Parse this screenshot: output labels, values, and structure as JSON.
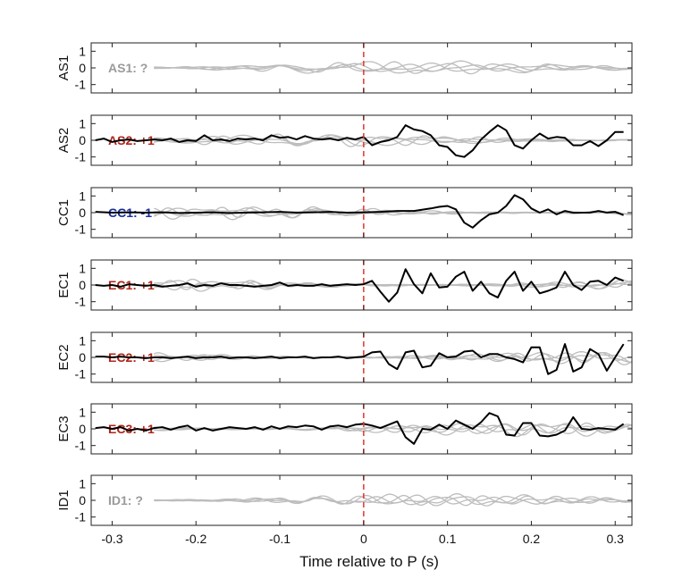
{
  "chart_data": {
    "type": "line",
    "xlabel": "Time relative to P (s)",
    "xlim": [
      -0.325,
      0.32
    ],
    "ylim": [
      -1.5,
      1.5
    ],
    "xticks": [
      "-0.3",
      "-0.2",
      "-0.1",
      "0",
      "0.1",
      "0.2",
      "0.3"
    ],
    "xtick_values": [
      -0.3,
      -0.2,
      -0.1,
      0,
      0.1,
      0.2,
      0.3
    ],
    "yticks": [
      "1",
      "0",
      "-1"
    ],
    "ytick_values": [
      1,
      0,
      -1
    ],
    "p_arrival_time": 0,
    "colors": {
      "observed": "#000000",
      "synthetic": "#bdbdbd",
      "marker": "#e8342c",
      "plus": "#b02418",
      "minus": "#1a2f9e",
      "unknown": "#9a9a9a"
    },
    "panels": [
      {
        "station": "AS1",
        "annotation": "AS1: ?",
        "polarity": "unknown",
        "observed": null
      },
      {
        "station": "AS2",
        "annotation": "AS2: +1",
        "polarity": "plus",
        "observed": {
          "x": [
            -0.32,
            -0.31,
            -0.3,
            -0.29,
            -0.28,
            -0.27,
            -0.26,
            -0.25,
            -0.24,
            -0.23,
            -0.22,
            -0.21,
            -0.2,
            -0.19,
            -0.18,
            -0.17,
            -0.16,
            -0.15,
            -0.14,
            -0.13,
            -0.12,
            -0.11,
            -0.1,
            -0.09,
            -0.08,
            -0.07,
            -0.06,
            -0.05,
            -0.04,
            -0.03,
            -0.02,
            -0.01,
            0.0,
            0.01,
            0.02,
            0.03,
            0.04,
            0.05,
            0.06,
            0.07,
            0.08,
            0.09,
            0.1,
            0.11,
            0.12,
            0.13,
            0.14,
            0.15,
            0.16,
            0.17,
            0.18,
            0.19,
            0.2,
            0.21,
            0.22,
            0.23,
            0.24,
            0.25,
            0.26,
            0.27,
            0.28,
            0.29,
            0.3,
            0.31
          ],
          "y": [
            0.0,
            0.1,
            -0.1,
            0.0,
            0.05,
            -0.05,
            0.0,
            0.05,
            0.0,
            0.1,
            -0.1,
            0.0,
            -0.05,
            0.3,
            0.0,
            0.05,
            -0.05,
            0.1,
            0.05,
            0.1,
            0.0,
            0.3,
            0.15,
            0.2,
            0.05,
            0.25,
            0.1,
            0.05,
            0.1,
            0.0,
            0.15,
            0.05,
            0.2,
            -0.3,
            -0.1,
            0.0,
            0.2,
            0.9,
            0.65,
            0.55,
            0.3,
            -0.3,
            -0.4,
            -0.9,
            -1.0,
            -0.6,
            0.05,
            0.5,
            0.9,
            0.6,
            -0.3,
            -0.5,
            0.0,
            0.4,
            0.1,
            0.2,
            0.15,
            -0.3,
            -0.3,
            -0.05,
            -0.35,
            0.0,
            0.5,
            0.5
          ]
        }
      },
      {
        "station": "CC1",
        "annotation": "CC1: -1",
        "polarity": "minus",
        "observed": {
          "x": [
            -0.32,
            -0.3,
            -0.28,
            -0.26,
            -0.24,
            -0.22,
            -0.2,
            -0.18,
            -0.16,
            -0.14,
            -0.12,
            -0.1,
            -0.08,
            -0.06,
            -0.04,
            -0.02,
            0.0,
            0.02,
            0.04,
            0.06,
            0.08,
            0.09,
            0.1,
            0.11,
            0.12,
            0.13,
            0.14,
            0.15,
            0.16,
            0.17,
            0.18,
            0.19,
            0.2,
            0.21,
            0.22,
            0.23,
            0.24,
            0.25,
            0.26,
            0.27,
            0.28,
            0.29,
            0.3,
            0.31
          ],
          "y": [
            0.05,
            0.0,
            0.02,
            0.0,
            0.02,
            -0.02,
            0.0,
            0.02,
            -0.02,
            0.0,
            0.02,
            0.05,
            0.0,
            0.02,
            0.05,
            0.0,
            0.02,
            0.05,
            0.1,
            0.1,
            0.25,
            0.35,
            0.4,
            0.2,
            -0.6,
            -0.9,
            -0.45,
            -0.1,
            0.0,
            0.4,
            1.05,
            0.8,
            0.25,
            0.0,
            0.2,
            -0.1,
            0.1,
            0.0,
            0.0,
            0.0,
            0.1,
            0.0,
            0.05,
            -0.15
          ]
        }
      },
      {
        "station": "EC1",
        "annotation": "EC1: +1",
        "polarity": "plus",
        "observed": {
          "x": [
            -0.32,
            -0.31,
            -0.3,
            -0.29,
            -0.28,
            -0.27,
            -0.26,
            -0.25,
            -0.24,
            -0.23,
            -0.22,
            -0.21,
            -0.2,
            -0.19,
            -0.18,
            -0.17,
            -0.16,
            -0.15,
            -0.14,
            -0.13,
            -0.12,
            -0.11,
            -0.1,
            -0.09,
            -0.08,
            -0.07,
            -0.06,
            -0.05,
            -0.04,
            -0.03,
            -0.02,
            -0.01,
            0.0,
            0.01,
            0.02,
            0.03,
            0.04,
            0.05,
            0.06,
            0.07,
            0.08,
            0.09,
            0.1,
            0.11,
            0.12,
            0.13,
            0.14,
            0.15,
            0.16,
            0.17,
            0.18,
            0.19,
            0.2,
            0.21,
            0.22,
            0.23,
            0.24,
            0.25,
            0.26,
            0.27,
            0.28,
            0.29,
            0.3,
            0.31
          ],
          "y": [
            0.0,
            -0.05,
            0.0,
            -0.1,
            0.05,
            0.0,
            -0.05,
            0.0,
            -0.1,
            -0.05,
            0.0,
            0.1,
            -0.1,
            0.0,
            -0.05,
            0.1,
            0.0,
            0.0,
            -0.05,
            -0.1,
            -0.05,
            0.0,
            0.15,
            -0.05,
            0.0,
            -0.05,
            -0.05,
            0.05,
            -0.05,
            0.0,
            0.05,
            0.0,
            0.05,
            0.25,
            -0.4,
            -1.0,
            -0.45,
            0.95,
            0.05,
            -0.5,
            0.7,
            -0.15,
            -0.1,
            0.5,
            0.8,
            -0.35,
            0.2,
            -0.5,
            -0.75,
            0.25,
            0.8,
            -0.35,
            0.2,
            -0.5,
            -0.35,
            -0.15,
            0.8,
            0.0,
            -0.3,
            0.2,
            0.25,
            0.0,
            0.45,
            0.25
          ]
        }
      },
      {
        "station": "EC2",
        "annotation": "EC2: +1",
        "polarity": "plus",
        "observed": {
          "x": [
            -0.32,
            -0.31,
            -0.3,
            -0.29,
            -0.28,
            -0.27,
            -0.26,
            -0.25,
            -0.24,
            -0.23,
            -0.22,
            -0.21,
            -0.2,
            -0.19,
            -0.18,
            -0.17,
            -0.16,
            -0.15,
            -0.14,
            -0.13,
            -0.12,
            -0.11,
            -0.1,
            -0.09,
            -0.08,
            -0.07,
            -0.06,
            -0.05,
            -0.04,
            -0.03,
            -0.02,
            -0.01,
            0.0,
            0.01,
            0.02,
            0.03,
            0.04,
            0.05,
            0.06,
            0.07,
            0.08,
            0.09,
            0.1,
            0.11,
            0.12,
            0.13,
            0.14,
            0.15,
            0.16,
            0.17,
            0.18,
            0.19,
            0.2,
            0.21,
            0.22,
            0.23,
            0.24,
            0.25,
            0.26,
            0.27,
            0.28,
            0.29,
            0.3,
            0.31
          ],
          "y": [
            0.05,
            0.05,
            0.0,
            0.05,
            0.0,
            0.0,
            -0.05,
            0.0,
            0.0,
            -0.05,
            0.0,
            0.05,
            -0.05,
            0.0,
            0.0,
            0.05,
            -0.05,
            0.0,
            0.0,
            -0.05,
            0.0,
            0.05,
            -0.05,
            0.0,
            0.0,
            0.05,
            -0.05,
            0.0,
            0.0,
            0.05,
            -0.05,
            0.0,
            0.05,
            0.3,
            0.35,
            -0.4,
            -0.7,
            0.3,
            0.4,
            -0.6,
            -0.5,
            0.25,
            0.0,
            0.05,
            0.35,
            0.4,
            0.0,
            0.2,
            0.2,
            0.0,
            -0.1,
            -0.3,
            0.6,
            0.6,
            -1.0,
            -0.75,
            0.8,
            -0.85,
            -0.6,
            0.5,
            0.2,
            -0.8,
            0.0,
            0.8
          ]
        }
      },
      {
        "station": "EC3",
        "annotation": "EC3: +1",
        "polarity": "plus",
        "observed": {
          "x": [
            -0.32,
            -0.31,
            -0.3,
            -0.29,
            -0.28,
            -0.27,
            -0.26,
            -0.25,
            -0.24,
            -0.23,
            -0.22,
            -0.21,
            -0.2,
            -0.19,
            -0.18,
            -0.17,
            -0.16,
            -0.15,
            -0.14,
            -0.13,
            -0.12,
            -0.11,
            -0.1,
            -0.09,
            -0.08,
            -0.07,
            -0.06,
            -0.05,
            -0.04,
            -0.03,
            -0.02,
            -0.01,
            0.0,
            0.01,
            0.02,
            0.03,
            0.04,
            0.05,
            0.06,
            0.07,
            0.08,
            0.09,
            0.1,
            0.11,
            0.12,
            0.13,
            0.14,
            0.15,
            0.16,
            0.17,
            0.18,
            0.19,
            0.2,
            0.21,
            0.22,
            0.23,
            0.24,
            0.25,
            0.26,
            0.27,
            0.28,
            0.29,
            0.3,
            0.31
          ],
          "y": [
            0.05,
            0.1,
            0.0,
            0.1,
            -0.1,
            0.0,
            -0.1,
            0.05,
            0.1,
            -0.05,
            0.1,
            0.2,
            -0.1,
            0.05,
            -0.1,
            0.0,
            0.1,
            0.05,
            0.0,
            0.1,
            -0.05,
            0.15,
            0.0,
            0.15,
            0.1,
            0.2,
            0.15,
            -0.05,
            0.15,
            0.2,
            0.1,
            0.25,
            0.3,
            0.2,
            0.05,
            0.25,
            0.45,
            -0.5,
            -0.9,
            0.0,
            -0.05,
            0.25,
            0.0,
            0.5,
            0.25,
            0.0,
            0.4,
            0.95,
            0.75,
            -0.35,
            -0.4,
            0.35,
            0.35,
            -0.4,
            -0.45,
            -0.35,
            -0.1,
            0.7,
            0.0,
            -0.05,
            0.05,
            0.0,
            -0.05,
            0.3
          ]
        }
      },
      {
        "station": "ID1",
        "annotation": "ID1: ?",
        "polarity": "unknown",
        "observed": null
      }
    ]
  }
}
